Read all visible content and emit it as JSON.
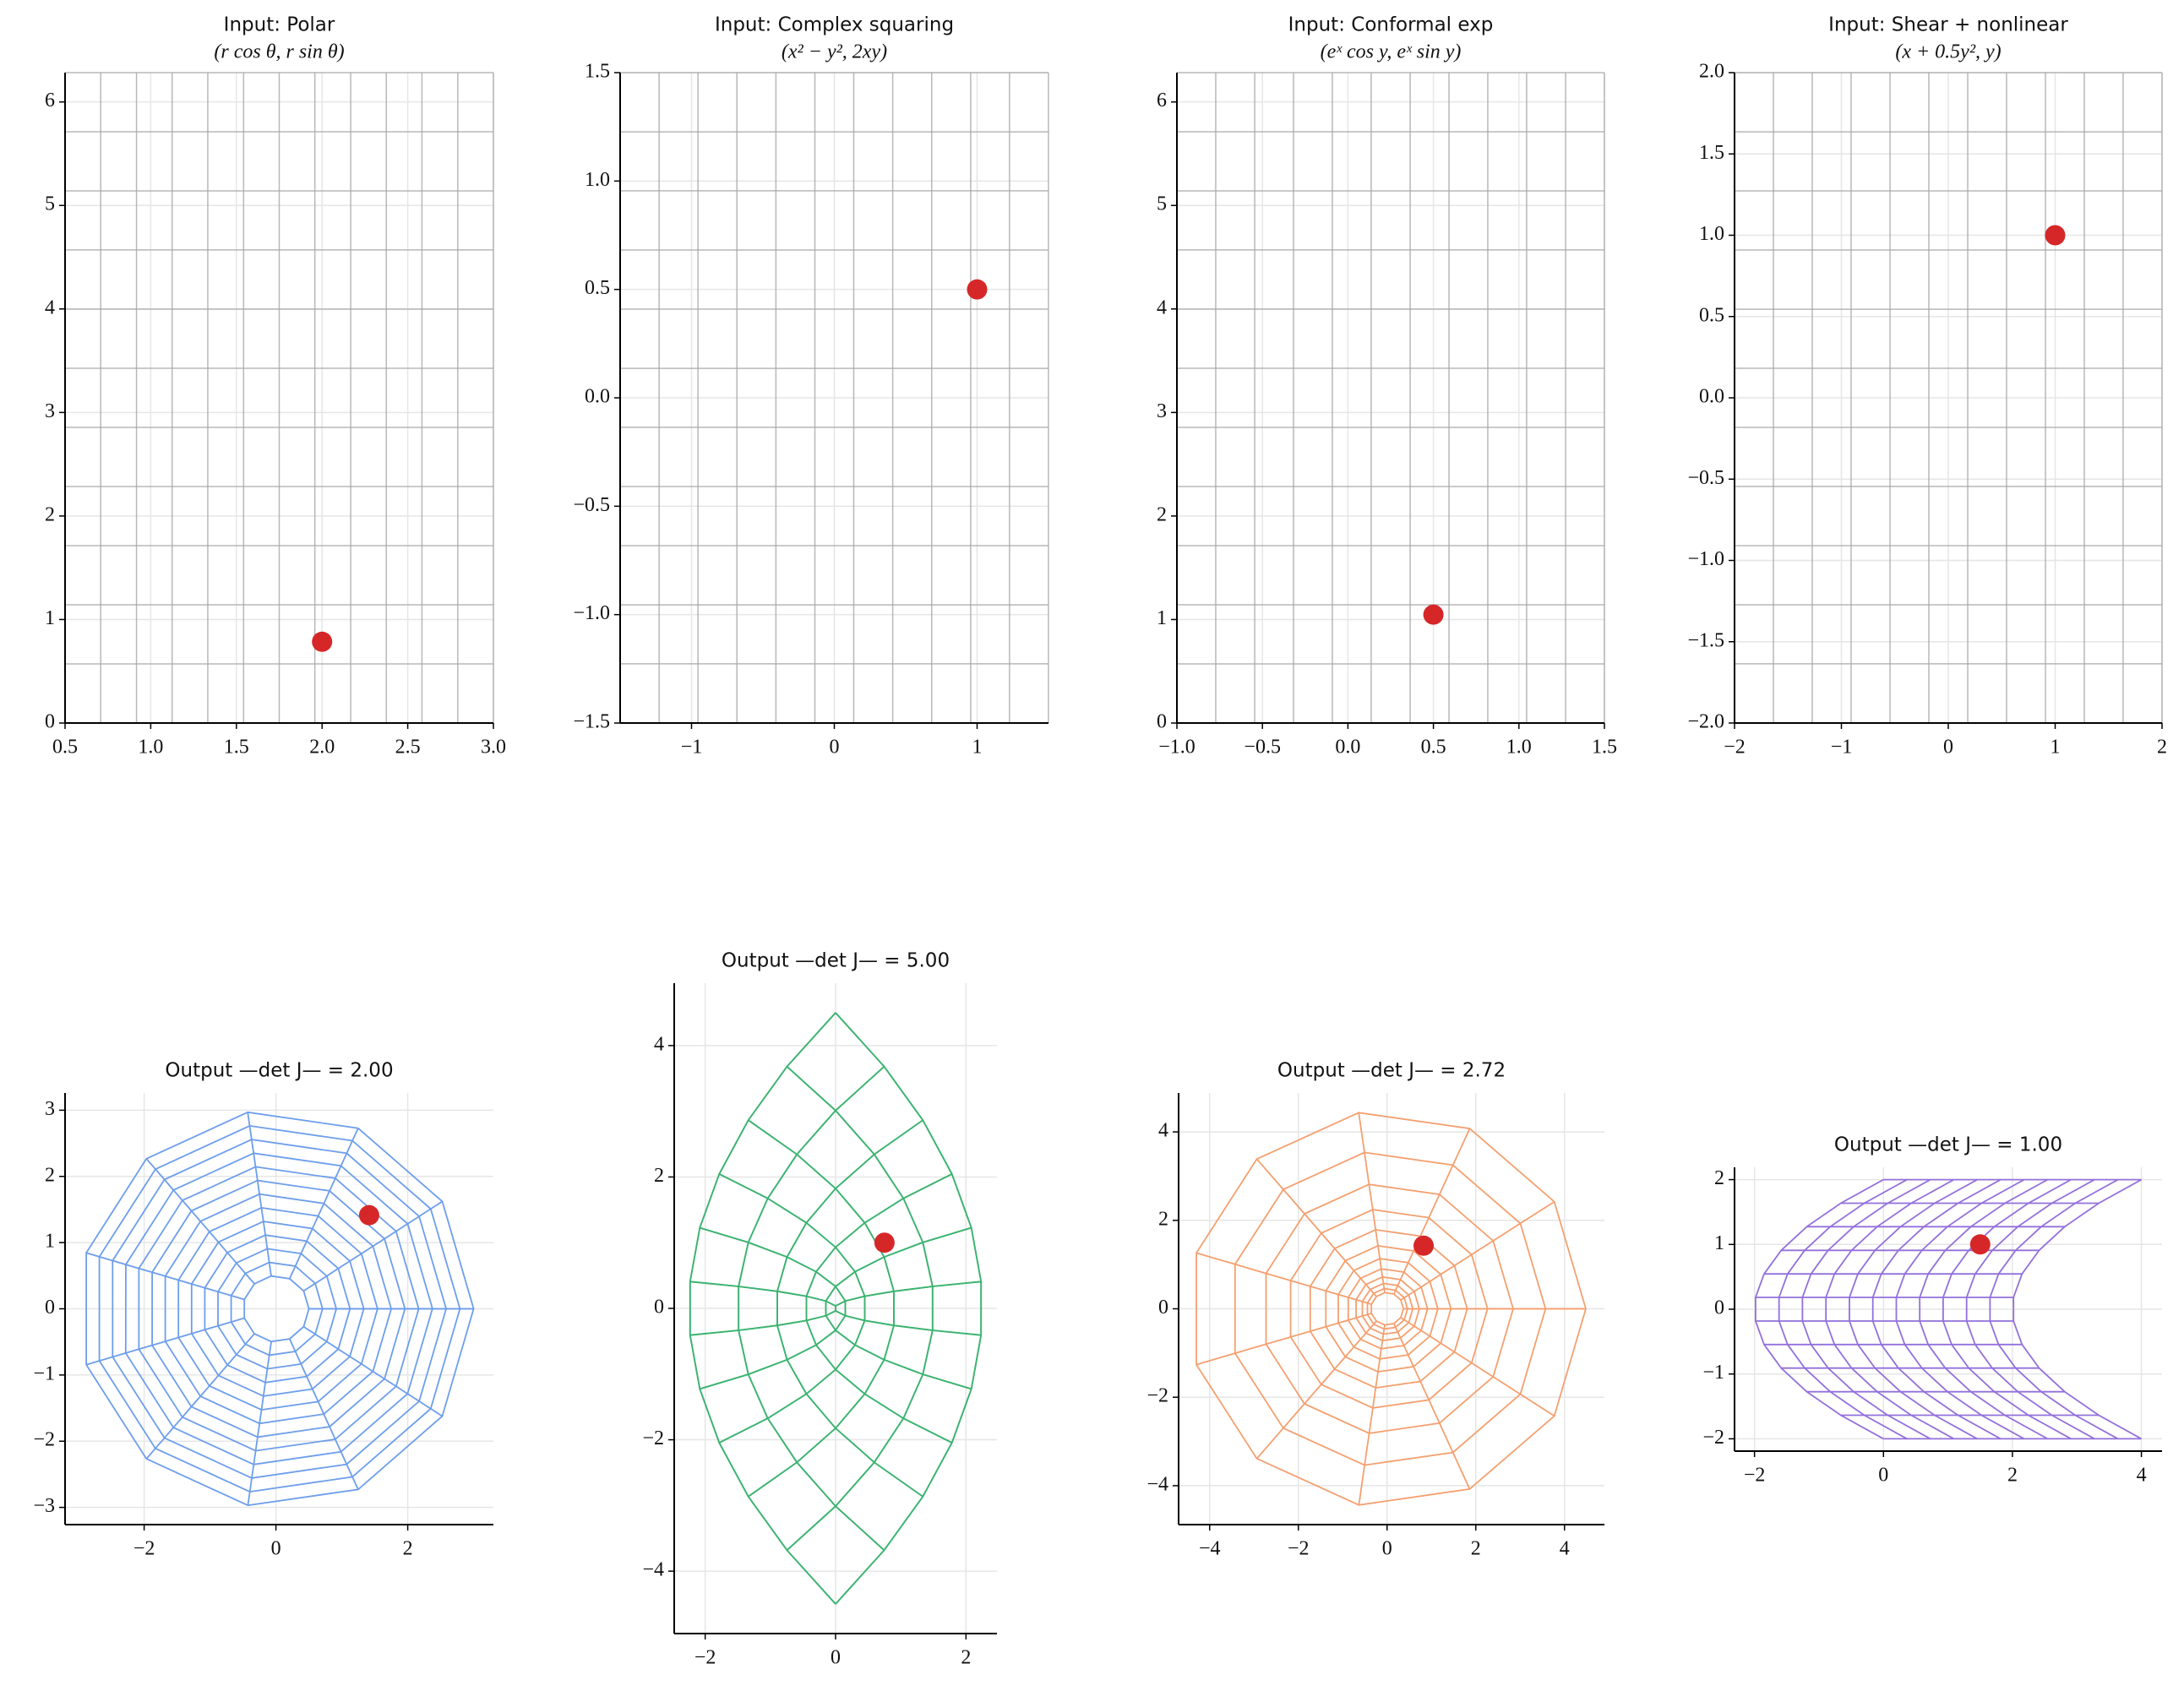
{
  "chart_data": [
    {
      "type": "mesh",
      "title": "Input: Polar",
      "subtitle": "(r cos θ, r sin θ)",
      "xlim": [
        0.5,
        3.0
      ],
      "ylim": [
        0,
        6.283
      ],
      "xticks": [
        0.5,
        {
          "value": 1,
          "label": "1.0"
        },
        1.5,
        {
          "value": 2,
          "label": "2.0"
        },
        2.5,
        {
          "value": 3,
          "label": "3.0"
        }
      ],
      "yticks": [
        0,
        1,
        2,
        3,
        4,
        5,
        6
      ],
      "grid": true,
      "mesh_color": "#a6a6a6",
      "mesh_x": [
        0.5,
        0.708,
        0.917,
        1.125,
        1.333,
        1.542,
        1.75,
        1.958,
        2.167,
        2.375,
        2.583,
        2.792,
        3.0
      ],
      "mesh_y": [
        0,
        0.571,
        1.142,
        1.714,
        2.285,
        2.856,
        3.427,
        3.998,
        4.57,
        5.141,
        5.712,
        6.283
      ],
      "point": {
        "x": 2.0,
        "y": 0.785,
        "color": "#d62728"
      }
    },
    {
      "type": "mesh",
      "title": "Input: Complex squaring",
      "subtitle": "(x² − y², 2xy)",
      "xlim": [
        -1.5,
        1.5
      ],
      "ylim": [
        -1.5,
        1.5
      ],
      "xticks": [
        {
          "value": -1,
          "label": "−1"
        },
        0,
        1
      ],
      "yticks": [
        {
          "value": -1.5,
          "label": "−1.5"
        },
        {
          "value": -1,
          "label": "−1.0"
        },
        {
          "value": -0.5,
          "label": "−0.5"
        },
        {
          "value": 0,
          "label": "0.0"
        },
        0.5,
        {
          "value": 1,
          "label": "1.0"
        },
        1.5
      ],
      "grid": true,
      "mesh_color": "#a6a6a6",
      "mesh_x": [
        -1.5,
        -1.227,
        -0.955,
        -0.682,
        -0.409,
        -0.136,
        0.136,
        0.409,
        0.682,
        0.955,
        1.227,
        1.5
      ],
      "mesh_y": [
        -1.5,
        -1.227,
        -0.955,
        -0.682,
        -0.409,
        -0.136,
        0.136,
        0.409,
        0.682,
        0.955,
        1.227,
        1.5
      ],
      "point": {
        "x": 1.0,
        "y": 0.5,
        "color": "#d62728"
      }
    },
    {
      "type": "mesh",
      "title": "Input: Conformal exp",
      "subtitle": "(eˣ cos y, eˣ sin y)",
      "xlim": [
        -1.0,
        1.5
      ],
      "ylim": [
        0,
        6.283
      ],
      "xticks": [
        {
          "value": -1,
          "label": "−1.0"
        },
        {
          "value": -0.5,
          "label": "−0.5"
        },
        {
          "value": 0,
          "label": "0.0"
        },
        0.5,
        {
          "value": 1,
          "label": "1.0"
        },
        1.5
      ],
      "yticks": [
        0,
        1,
        2,
        3,
        4,
        5,
        6
      ],
      "grid": true,
      "mesh_color": "#a6a6a6",
      "mesh_x": [
        -1.0,
        -0.773,
        -0.545,
        -0.318,
        -0.091,
        0.136,
        0.364,
        0.591,
        0.818,
        1.045,
        1.273,
        1.5
      ],
      "mesh_y": [
        0,
        0.571,
        1.142,
        1.714,
        2.285,
        2.856,
        3.427,
        3.998,
        4.57,
        5.141,
        5.712,
        6.283
      ],
      "point": {
        "x": 0.5,
        "y": 1.047,
        "color": "#d62728"
      }
    },
    {
      "type": "mesh",
      "title": "Input: Shear + nonlinear",
      "subtitle": "(x + 0.5y², y)",
      "xlim": [
        -2,
        2
      ],
      "ylim": [
        -2,
        2
      ],
      "xticks": [
        {
          "value": -2,
          "label": "−2"
        },
        {
          "value": -1,
          "label": "−1"
        },
        0,
        1,
        2
      ],
      "yticks": [
        {
          "value": -2,
          "label": "−2.0"
        },
        {
          "value": -1.5,
          "label": "−1.5"
        },
        {
          "value": -1,
          "label": "−1.0"
        },
        {
          "value": -0.5,
          "label": "−0.5"
        },
        {
          "value": 0,
          "label": "0.0"
        },
        0.5,
        {
          "value": 1,
          "label": "1.0"
        },
        1.5,
        {
          "value": 2,
          "label": "2.0"
        }
      ],
      "grid": true,
      "mesh_color": "#a6a6a6",
      "mesh_x": [
        -2,
        -1.636,
        -1.273,
        -0.909,
        -0.545,
        -0.182,
        0.182,
        0.545,
        0.909,
        1.273,
        1.636,
        2
      ],
      "mesh_y": [
        -2,
        -1.636,
        -1.273,
        -0.909,
        -0.545,
        -0.182,
        0.182,
        0.545,
        0.909,
        1.273,
        1.636,
        2
      ],
      "point": {
        "x": 1.0,
        "y": 1.0,
        "color": "#d62728"
      }
    },
    {
      "type": "polar",
      "title": "Output —det J— = 2.00",
      "xlim": [
        -3.2,
        3.3
      ],
      "ylim": [
        -3.26,
        3.26
      ],
      "xticks": [
        {
          "value": -2,
          "label": "−2"
        },
        0,
        2
      ],
      "yticks": [
        {
          "value": -3,
          "label": "−3"
        },
        {
          "value": -2,
          "label": "−2"
        },
        {
          "value": -1,
          "label": "−1"
        },
        0,
        1,
        2,
        3
      ],
      "grid": true,
      "color": "#6d9eeb",
      "point": {
        "x": 1.414,
        "y": 1.414,
        "color": "#d62728"
      }
    },
    {
      "type": "complex-square",
      "title": "Output —det J— = 5.00",
      "xlim": [
        -2.475,
        2.475
      ],
      "ylim": [
        -4.95,
        4.95
      ],
      "xticks": [
        {
          "value": -2,
          "label": "−2"
        },
        0,
        2
      ],
      "yticks": [
        {
          "value": -4,
          "label": "−4"
        },
        {
          "value": -2,
          "label": "−2"
        },
        0,
        2,
        4
      ],
      "grid": true,
      "color": "#3cb371",
      "point": {
        "x": 0.75,
        "y": 1.0,
        "color": "#d62728"
      }
    },
    {
      "type": "exp",
      "title": "Output —det J— = 2.72",
      "xlim": [
        -4.7,
        4.9
      ],
      "ylim": [
        -4.88,
        4.88
      ],
      "xticks": [
        {
          "value": -4,
          "label": "−4"
        },
        {
          "value": -2,
          "label": "−2"
        },
        0,
        2,
        4
      ],
      "yticks": [
        {
          "value": -4,
          "label": "−4"
        },
        {
          "value": -2,
          "label": "−2"
        },
        0,
        2,
        4
      ],
      "grid": true,
      "color": "#f4a070",
      "point": {
        "x": 0.824,
        "y": 1.427,
        "color": "#d62728"
      }
    },
    {
      "type": "shear",
      "title": "Output —det J— = 1.00",
      "xlim": [
        -2.31,
        4.32
      ],
      "ylim": [
        -2.19,
        2.19
      ],
      "xticks": [
        {
          "value": -2,
          "label": "−2"
        },
        0,
        2,
        4
      ],
      "yticks": [
        {
          "value": -2,
          "label": "−2"
        },
        {
          "value": -1,
          "label": "−1"
        },
        0,
        1,
        2
      ],
      "grid": true,
      "color": "#9370db",
      "point": {
        "x": 1.5,
        "y": 1.0,
        "color": "#d62728"
      }
    }
  ]
}
